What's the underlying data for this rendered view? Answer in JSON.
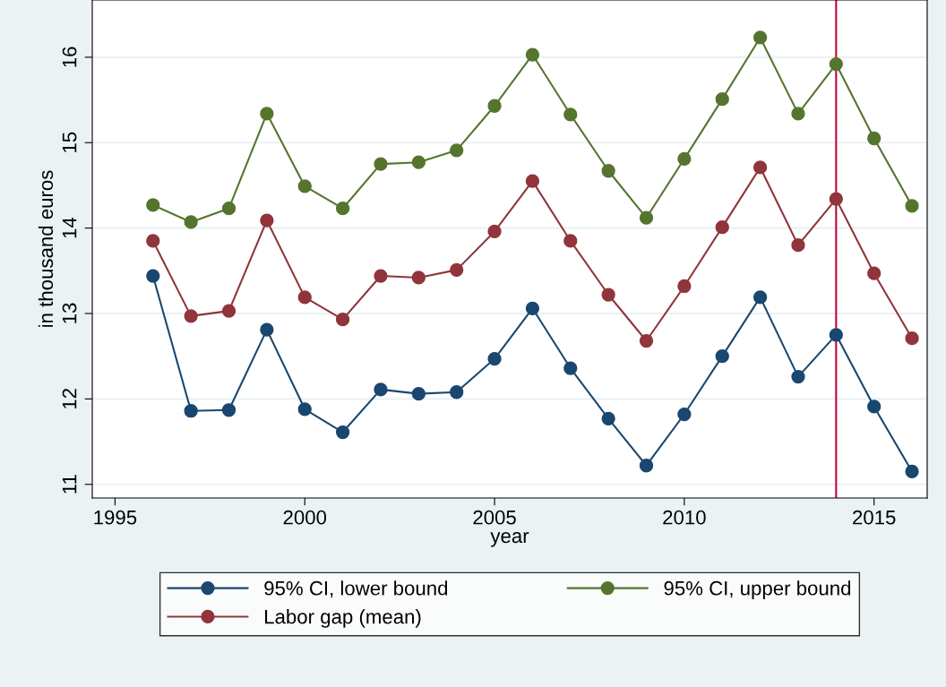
{
  "chart_data": {
    "type": "line",
    "xlabel": "year",
    "ylabel": "in thousand euros",
    "x": [
      1996,
      1997,
      1998,
      1999,
      2000,
      2001,
      2002,
      2003,
      2004,
      2005,
      2006,
      2007,
      2008,
      2009,
      2010,
      2011,
      2012,
      2013,
      2014,
      2015,
      2016
    ],
    "series": [
      {
        "name": "95% CI, lower bound",
        "color": "#1a476f",
        "values": [
          13.44,
          11.86,
          11.87,
          12.81,
          11.88,
          11.61,
          12.11,
          12.06,
          12.08,
          12.47,
          13.06,
          12.36,
          11.77,
          11.22,
          11.82,
          12.5,
          13.19,
          12.26,
          12.75,
          11.91,
          11.15
        ]
      },
      {
        "name": "Labor gap (mean)",
        "color": "#90353b",
        "values": [
          13.85,
          12.97,
          13.03,
          14.09,
          13.19,
          12.93,
          13.44,
          13.42,
          13.51,
          13.96,
          14.55,
          13.85,
          13.22,
          12.68,
          13.32,
          14.01,
          14.71,
          13.8,
          14.34,
          13.47,
          12.71
        ]
      },
      {
        "name": "95% CI, upper bound",
        "color": "#55752f",
        "values": [
          14.27,
          14.07,
          14.23,
          15.34,
          14.49,
          14.23,
          14.75,
          14.77,
          14.91,
          15.43,
          16.03,
          15.33,
          14.67,
          14.12,
          14.81,
          15.51,
          16.23,
          15.34,
          15.92,
          15.05,
          14.26
        ]
      }
    ],
    "xlim": [
      1994.4,
      2016.4
    ],
    "xticks": [
      1995,
      2000,
      2005,
      2010,
      2015
    ],
    "ylim": [
      10.84,
      16.67
    ],
    "yticks": [
      11,
      12,
      13,
      14,
      15,
      16
    ],
    "ref_lines": [
      {
        "axis": "x",
        "value": 2014,
        "color": "#c10534"
      }
    ],
    "grid": "y",
    "legend": "bottom",
    "marker": "circle",
    "line_style": "solid"
  }
}
